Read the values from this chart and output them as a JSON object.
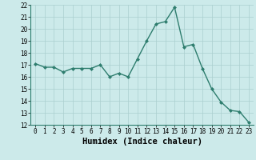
{
  "xlabel": "Humidex (Indice chaleur)",
  "ylabel": "",
  "x": [
    0,
    1,
    2,
    3,
    4,
    5,
    6,
    7,
    8,
    9,
    10,
    11,
    12,
    13,
    14,
    15,
    16,
    17,
    18,
    19,
    20,
    21,
    22,
    23
  ],
  "y": [
    17.1,
    16.8,
    16.8,
    16.4,
    16.7,
    16.7,
    16.7,
    17.0,
    16.0,
    16.3,
    16.0,
    17.5,
    19.0,
    20.4,
    20.6,
    21.8,
    18.5,
    18.7,
    16.7,
    15.0,
    13.9,
    13.2,
    13.1,
    12.2
  ],
  "line_color": "#2e7d6e",
  "marker": "D",
  "marker_size": 2.0,
  "bg_color": "#cceaea",
  "grid_color": "#aacfcf",
  "ylim": [
    12,
    22
  ],
  "xlim_min": -0.5,
  "xlim_max": 23.5,
  "yticks": [
    12,
    13,
    14,
    15,
    16,
    17,
    18,
    19,
    20,
    21,
    22
  ],
  "xticks": [
    0,
    1,
    2,
    3,
    4,
    5,
    6,
    7,
    8,
    9,
    10,
    11,
    12,
    13,
    14,
    15,
    16,
    17,
    18,
    19,
    20,
    21,
    22,
    23
  ],
  "tick_fontsize": 5.5,
  "xlabel_fontsize": 7.5,
  "linewidth": 1.0
}
